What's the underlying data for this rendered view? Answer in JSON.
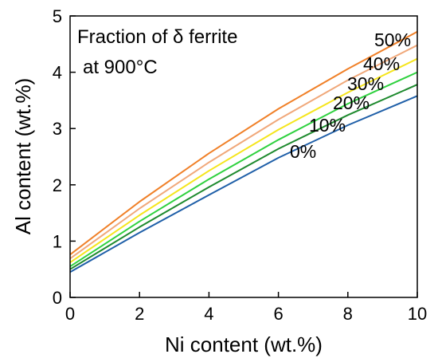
{
  "chart_data": {
    "type": "line",
    "title": "",
    "annotation": [
      "Fraction of δ ferrite",
      "at 900°C"
    ],
    "xlabel": "Ni content (wt.%)",
    "ylabel": "Al content (wt.%)",
    "xlim": [
      0,
      10
    ],
    "ylim": [
      0,
      5
    ],
    "xticks": [
      0,
      2,
      4,
      6,
      8,
      10
    ],
    "yticks": [
      0,
      1,
      2,
      3,
      4,
      5
    ],
    "grid": false,
    "legend": "none",
    "series": [
      {
        "name": "0%",
        "color": "#1f5fa8",
        "x": [
          0,
          2,
          4,
          6,
          8,
          10
        ],
        "y": [
          0.45,
          1.15,
          1.82,
          2.48,
          3.06,
          3.58
        ]
      },
      {
        "name": "10%",
        "color": "#1e8a2e",
        "x": [
          0,
          2,
          4,
          6,
          8,
          10
        ],
        "y": [
          0.5,
          1.25,
          1.96,
          2.64,
          3.24,
          3.78
        ]
      },
      {
        "name": "20%",
        "color": "#2fd13f",
        "x": [
          0,
          2,
          4,
          6,
          8,
          10
        ],
        "y": [
          0.55,
          1.35,
          2.1,
          2.8,
          3.44,
          4.0
        ]
      },
      {
        "name": "30%",
        "color": "#f5e51c",
        "x": [
          0,
          2,
          4,
          6,
          8,
          10
        ],
        "y": [
          0.62,
          1.46,
          2.25,
          2.98,
          3.64,
          4.24
        ]
      },
      {
        "name": "40%",
        "color": "#f0a87a",
        "x": [
          0,
          2,
          4,
          6,
          8,
          10
        ],
        "y": [
          0.69,
          1.58,
          2.4,
          3.16,
          3.86,
          4.48
        ]
      },
      {
        "name": "50%",
        "color": "#f08028",
        "x": [
          0,
          2,
          4,
          6,
          8,
          10
        ],
        "y": [
          0.76,
          1.7,
          2.56,
          3.35,
          4.06,
          4.72
        ]
      }
    ],
    "series_label_text": [
      "0%",
      "10%",
      "20%",
      "30%",
      "40%",
      "50%"
    ]
  }
}
